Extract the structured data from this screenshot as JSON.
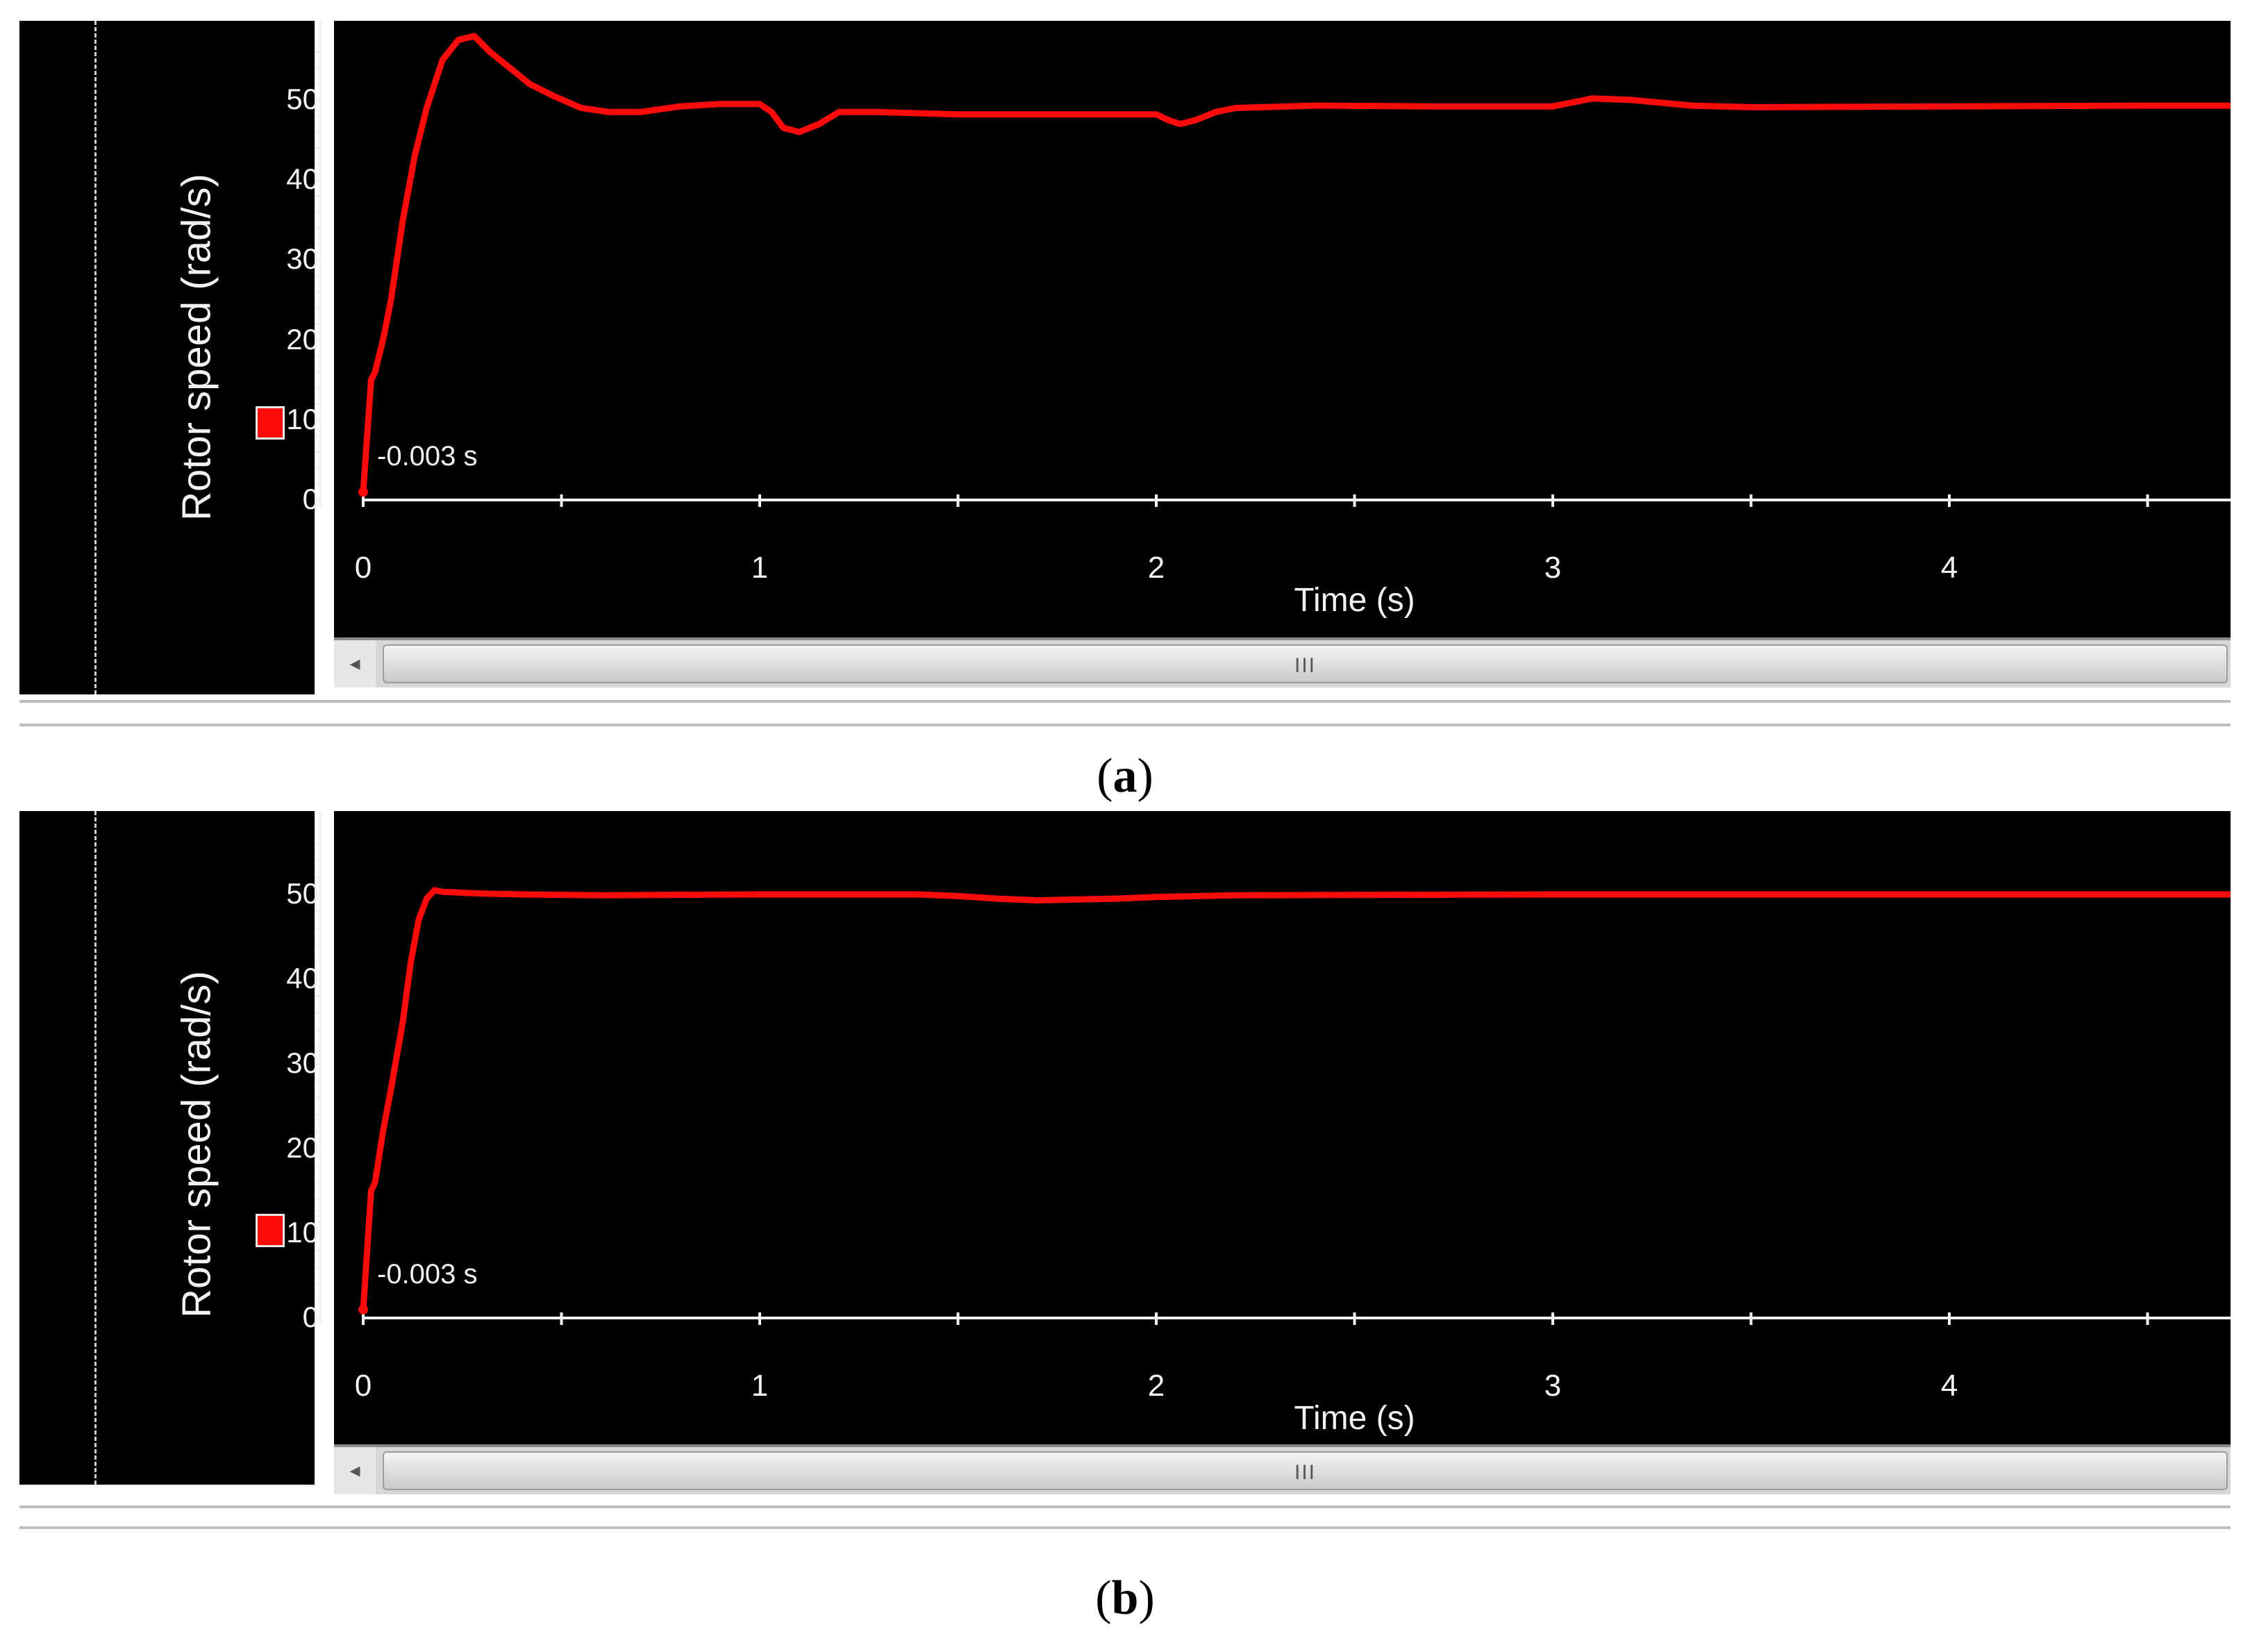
{
  "chart_data": [
    {
      "type": "line",
      "panel_label": "a",
      "ylabel": "Rotor speed (rad/s)",
      "xlabel": "Time (s)",
      "annotation": "-0.003 s",
      "xlim": [
        0,
        4.75
      ],
      "ylim": [
        0,
        56
      ],
      "x_ticks": [
        "0",
        "1",
        "2",
        "3",
        "4"
      ],
      "y_ticks": [
        "0",
        "10",
        "20",
        "30",
        "40",
        "50"
      ],
      "series": [
        {
          "color": "#ff0a0a",
          "x": [
            0.0,
            0.01,
            0.02,
            0.03,
            0.05,
            0.07,
            0.1,
            0.13,
            0.16,
            0.2,
            0.24,
            0.28,
            0.32,
            0.37,
            0.42,
            0.48,
            0.55,
            0.62,
            0.7,
            0.8,
            0.9,
            1.0,
            1.03,
            1.06,
            1.1,
            1.15,
            1.2,
            1.3,
            1.5,
            1.8,
            2.0,
            2.03,
            2.06,
            2.1,
            2.15,
            2.2,
            2.4,
            2.7,
            3.0,
            3.05,
            3.1,
            3.2,
            3.35,
            3.5,
            4.0,
            4.5,
            4.75
          ],
          "y": [
            1,
            8,
            15,
            16,
            20,
            25,
            35,
            43,
            49,
            55,
            57.5,
            58,
            56,
            54,
            52,
            50.5,
            49,
            48.5,
            48.5,
            49.2,
            49.5,
            49.5,
            48.5,
            46.5,
            46,
            47,
            48.5,
            48.5,
            48.2,
            48.2,
            48.2,
            47.5,
            47,
            47.5,
            48.5,
            49,
            49.3,
            49.2,
            49.2,
            49.7,
            50.2,
            50,
            49.3,
            49.1,
            49.2,
            49.3,
            49.3
          ]
        }
      ]
    },
    {
      "type": "line",
      "panel_label": "b",
      "ylabel": "Rotor speed (rad/s)",
      "xlabel": "Time (s)",
      "annotation": "-0.003 s",
      "xlim": [
        0,
        4.75
      ],
      "ylim": [
        0,
        56
      ],
      "x_ticks": [
        "0",
        "1",
        "2",
        "3",
        "4"
      ],
      "y_ticks": [
        "0",
        "10",
        "20",
        "30",
        "40",
        "50"
      ],
      "series": [
        {
          "color": "#ff0a0a",
          "x": [
            0.0,
            0.01,
            0.02,
            0.03,
            0.05,
            0.07,
            0.1,
            0.12,
            0.14,
            0.16,
            0.18,
            0.2,
            0.25,
            0.3,
            0.4,
            0.6,
            1.0,
            1.4,
            1.5,
            1.6,
            1.7,
            1.8,
            1.9,
            2.0,
            2.2,
            3.0,
            4.0,
            4.75
          ],
          "y": [
            1,
            8,
            15,
            16,
            22,
            27,
            35,
            42,
            47,
            49.5,
            50.5,
            50.3,
            50.2,
            50.1,
            50,
            49.9,
            50,
            50,
            49.8,
            49.5,
            49.3,
            49.4,
            49.5,
            49.7,
            49.9,
            50,
            50,
            50
          ]
        }
      ]
    }
  ],
  "panels": [
    {
      "caption_label": "a",
      "scroll_grip": "III",
      "scroll_left_arrow": "◂"
    },
    {
      "caption_label": "b",
      "scroll_grip": "III",
      "scroll_left_arrow": "◂"
    }
  ]
}
